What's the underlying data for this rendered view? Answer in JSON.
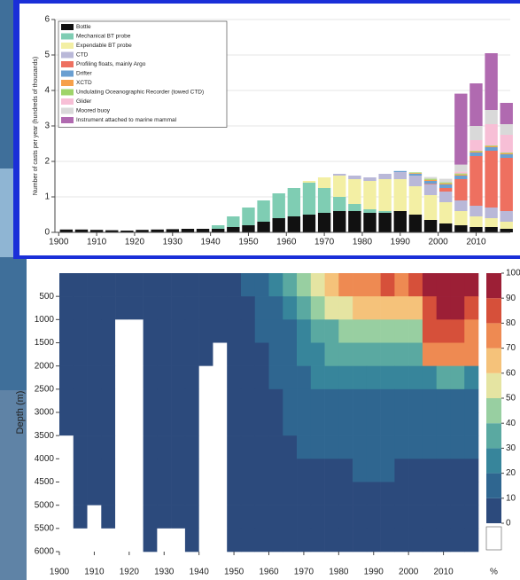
{
  "chart_data": [
    {
      "type": "bar",
      "stacked": true,
      "ylabel": "Number of casts per year (hundreds of thousands)",
      "x": [
        1900,
        1904,
        1908,
        1912,
        1916,
        1920,
        1924,
        1928,
        1932,
        1936,
        1940,
        1944,
        1948,
        1952,
        1956,
        1960,
        1964,
        1968,
        1972,
        1976,
        1980,
        1984,
        1988,
        1992,
        1996,
        2000,
        2004,
        2008,
        2012,
        2016
      ],
      "xlim": [
        1899,
        2019
      ],
      "xticks": [
        1900,
        1910,
        1920,
        1930,
        1940,
        1950,
        1960,
        1970,
        1980,
        1990,
        2000,
        2010
      ],
      "ylim": [
        0,
        6
      ],
      "yticks": [
        0,
        1,
        2,
        3,
        4,
        5,
        6
      ],
      "grid": true,
      "legend": "upper left",
      "series": [
        {
          "name": "Bottle",
          "color": "#111111",
          "values": [
            0.08,
            0.08,
            0.07,
            0.06,
            0.05,
            0.07,
            0.08,
            0.09,
            0.1,
            0.1,
            0.1,
            0.15,
            0.2,
            0.3,
            0.4,
            0.45,
            0.5,
            0.55,
            0.6,
            0.6,
            0.55,
            0.55,
            0.6,
            0.5,
            0.35,
            0.25,
            0.2,
            0.15,
            0.15,
            0.1
          ]
        },
        {
          "name": "Mechanical BT probe",
          "color": "#7fcdb3",
          "values": [
            0,
            0,
            0,
            0,
            0,
            0,
            0,
            0,
            0,
            0,
            0.1,
            0.3,
            0.5,
            0.6,
            0.7,
            0.8,
            0.9,
            0.7,
            0.4,
            0.2,
            0.1,
            0.05,
            0,
            0,
            0,
            0,
            0,
            0,
            0,
            0
          ]
        },
        {
          "name": "Expendable BT probe",
          "color": "#f3efa4",
          "values": [
            0,
            0,
            0,
            0,
            0,
            0,
            0,
            0,
            0,
            0,
            0,
            0,
            0,
            0,
            0,
            0,
            0.05,
            0.3,
            0.6,
            0.7,
            0.8,
            0.9,
            0.9,
            0.8,
            0.7,
            0.6,
            0.4,
            0.3,
            0.25,
            0.2
          ]
        },
        {
          "name": "CTD",
          "color": "#b9b8d8",
          "values": [
            0,
            0,
            0,
            0,
            0,
            0,
            0,
            0,
            0,
            0,
            0,
            0,
            0,
            0,
            0,
            0,
            0,
            0,
            0.05,
            0.1,
            0.1,
            0.15,
            0.2,
            0.3,
            0.3,
            0.3,
            0.3,
            0.3,
            0.3,
            0.3
          ]
        },
        {
          "name": "Profiling floats, mainly Argo",
          "color": "#ee7060",
          "values": [
            0,
            0,
            0,
            0,
            0,
            0,
            0,
            0,
            0,
            0,
            0,
            0,
            0,
            0,
            0,
            0,
            0,
            0,
            0,
            0,
            0,
            0,
            0,
            0,
            0.02,
            0.1,
            0.6,
            1.4,
            1.6,
            1.5
          ]
        },
        {
          "name": "Drifter",
          "color": "#6a9fd1",
          "values": [
            0,
            0,
            0,
            0,
            0,
            0,
            0,
            0,
            0,
            0,
            0,
            0,
            0,
            0,
            0,
            0,
            0,
            0,
            0,
            0,
            0,
            0,
            0.03,
            0.05,
            0.08,
            0.1,
            0.1,
            0.1,
            0.1,
            0.1
          ]
        },
        {
          "name": "XCTD",
          "color": "#f6a04a",
          "values": [
            0,
            0,
            0,
            0,
            0,
            0,
            0,
            0,
            0,
            0,
            0,
            0,
            0,
            0,
            0,
            0,
            0,
            0,
            0,
            0,
            0,
            0,
            0,
            0.02,
            0.03,
            0.03,
            0.03,
            0.03,
            0.03,
            0.03
          ]
        },
        {
          "name": "Undulating Oceanographic Recorder (towed CTD)",
          "color": "#9fd46a",
          "values": [
            0,
            0,
            0,
            0,
            0,
            0,
            0,
            0,
            0,
            0,
            0,
            0,
            0,
            0,
            0,
            0,
            0,
            0,
            0,
            0,
            0,
            0,
            0,
            0.02,
            0.03,
            0.03,
            0.03,
            0.02,
            0.02,
            0.02
          ]
        },
        {
          "name": "Glider",
          "color": "#f7bfd6",
          "values": [
            0,
            0,
            0,
            0,
            0,
            0,
            0,
            0,
            0,
            0,
            0,
            0,
            0,
            0,
            0,
            0,
            0,
            0,
            0,
            0,
            0,
            0,
            0,
            0,
            0,
            0,
            0.05,
            0.3,
            0.6,
            0.5
          ]
        },
        {
          "name": "Moored buoy",
          "color": "#d9d9d9",
          "values": [
            0,
            0,
            0,
            0,
            0,
            0,
            0,
            0,
            0,
            0,
            0,
            0,
            0,
            0,
            0,
            0,
            0,
            0,
            0,
            0,
            0,
            0,
            0,
            0,
            0.05,
            0.1,
            0.2,
            0.4,
            0.4,
            0.3
          ]
        },
        {
          "name": "Instrument attached to marine mammal",
          "color": "#b06ab0",
          "values": [
            0,
            0,
            0,
            0,
            0,
            0,
            0,
            0,
            0,
            0,
            0,
            0,
            0,
            0,
            0,
            0,
            0,
            0,
            0,
            0,
            0,
            0,
            0,
            0,
            0,
            0,
            2.0,
            1.2,
            1.6,
            0.6
          ]
        }
      ]
    },
    {
      "type": "heatmap",
      "ylabel": "Depth (m)",
      "x_edges": [
        1900,
        1904,
        1908,
        1912,
        1916,
        1920,
        1924,
        1928,
        1932,
        1936,
        1940,
        1944,
        1948,
        1952,
        1956,
        1960,
        1964,
        1968,
        1972,
        1976,
        1980,
        1984,
        1988,
        1992,
        1996,
        2000,
        2004,
        2008,
        2012,
        2016,
        2020
      ],
      "y_edges": [
        0,
        500,
        1000,
        1500,
        2000,
        2500,
        3000,
        3500,
        4000,
        4500,
        5000,
        5500,
        6000
      ],
      "xlim": [
        1900,
        2020
      ],
      "xticks": [
        1900,
        1910,
        1920,
        1930,
        1940,
        1950,
        1960,
        1970,
        1980,
        1990,
        2000,
        2010
      ],
      "ylim": [
        0,
        6000
      ],
      "y_reversed": true,
      "yticks": [
        500,
        1000,
        1500,
        2000,
        2500,
        3000,
        3500,
        4000,
        4500,
        5000,
        5500,
        6000
      ],
      "values": [
        [
          5,
          5,
          5,
          5,
          5,
          5,
          5,
          5,
          5,
          5,
          5,
          5,
          8,
          10,
          15,
          22,
          30,
          40,
          55,
          65,
          72,
          75,
          78,
          80,
          78,
          80,
          92,
          95,
          96,
          90
        ],
        [
          5,
          5,
          5,
          5,
          3,
          5,
          5,
          5,
          5,
          5,
          5,
          5,
          6,
          8,
          12,
          18,
          25,
          35,
          45,
          52,
          58,
          60,
          62,
          62,
          60,
          62,
          88,
          92,
          93,
          85
        ],
        [
          5,
          5,
          5,
          5,
          0,
          0,
          5,
          5,
          5,
          5,
          5,
          5,
          6,
          7,
          10,
          14,
          18,
          25,
          32,
          38,
          42,
          45,
          45,
          46,
          44,
          45,
          80,
          85,
          86,
          78
        ],
        [
          5,
          5,
          5,
          5,
          0,
          0,
          5,
          5,
          5,
          5,
          3,
          0,
          5,
          6,
          8,
          12,
          15,
          20,
          25,
          30,
          32,
          35,
          35,
          36,
          34,
          35,
          72,
          75,
          76,
          70
        ],
        [
          5,
          5,
          5,
          5,
          0,
          0,
          5,
          5,
          5,
          5,
          0,
          0,
          5,
          6,
          8,
          10,
          14,
          18,
          22,
          22,
          25,
          28,
          28,
          26,
          25,
          26,
          28,
          30,
          30,
          28
        ],
        [
          5,
          5,
          5,
          5,
          0,
          0,
          5,
          5,
          5,
          5,
          0,
          0,
          5,
          5,
          7,
          9,
          12,
          15,
          15,
          16,
          16,
          18,
          18,
          17,
          15,
          16,
          15,
          16,
          16,
          15
        ],
        [
          5,
          5,
          5,
          5,
          0,
          0,
          5,
          5,
          5,
          5,
          0,
          0,
          5,
          5,
          6,
          8,
          10,
          12,
          12,
          13,
          13,
          14,
          15,
          14,
          12,
          12,
          12,
          12,
          12,
          12
        ],
        [
          0,
          5,
          5,
          5,
          0,
          0,
          5,
          5,
          5,
          5,
          0,
          0,
          5,
          5,
          5,
          7,
          9,
          10,
          10,
          11,
          11,
          12,
          12,
          12,
          10,
          10,
          10,
          10,
          10,
          10
        ],
        [
          0,
          5,
          5,
          5,
          0,
          0,
          5,
          5,
          5,
          5,
          0,
          0,
          5,
          5,
          5,
          6,
          8,
          8,
          9,
          9,
          9,
          10,
          10,
          10,
          9,
          9,
          9,
          9,
          9,
          9
        ],
        [
          0,
          5,
          5,
          5,
          0,
          0,
          5,
          5,
          5,
          5,
          0,
          0,
          5,
          5,
          5,
          5,
          7,
          7,
          7,
          8,
          8,
          8,
          8,
          8,
          7,
          7,
          7,
          7,
          7,
          7
        ],
        [
          0,
          5,
          0,
          5,
          0,
          0,
          5,
          5,
          5,
          5,
          0,
          0,
          5,
          5,
          5,
          5,
          6,
          6,
          6,
          6,
          6,
          6,
          6,
          6,
          6,
          6,
          6,
          6,
          6,
          6
        ],
        [
          0,
          0,
          0,
          0,
          0,
          0,
          5,
          0,
          0,
          5,
          0,
          0,
          5,
          5,
          5,
          5,
          5,
          5,
          5,
          5,
          5,
          5,
          5,
          5,
          5,
          5,
          5,
          5,
          5,
          5
        ]
      ],
      "colorbar": {
        "label": "%",
        "ticks": [
          0,
          10,
          20,
          30,
          40,
          50,
          60,
          70,
          80,
          90,
          100
        ],
        "zero_color": "#ffffff",
        "colors": [
          "#2c4a7c",
          "#2f6690",
          "#37859b",
          "#5aa9a1",
          "#98cfa1",
          "#e5e4a2",
          "#f5c27a",
          "#ee8a52",
          "#d6503a",
          "#9c1f36"
        ]
      }
    }
  ]
}
